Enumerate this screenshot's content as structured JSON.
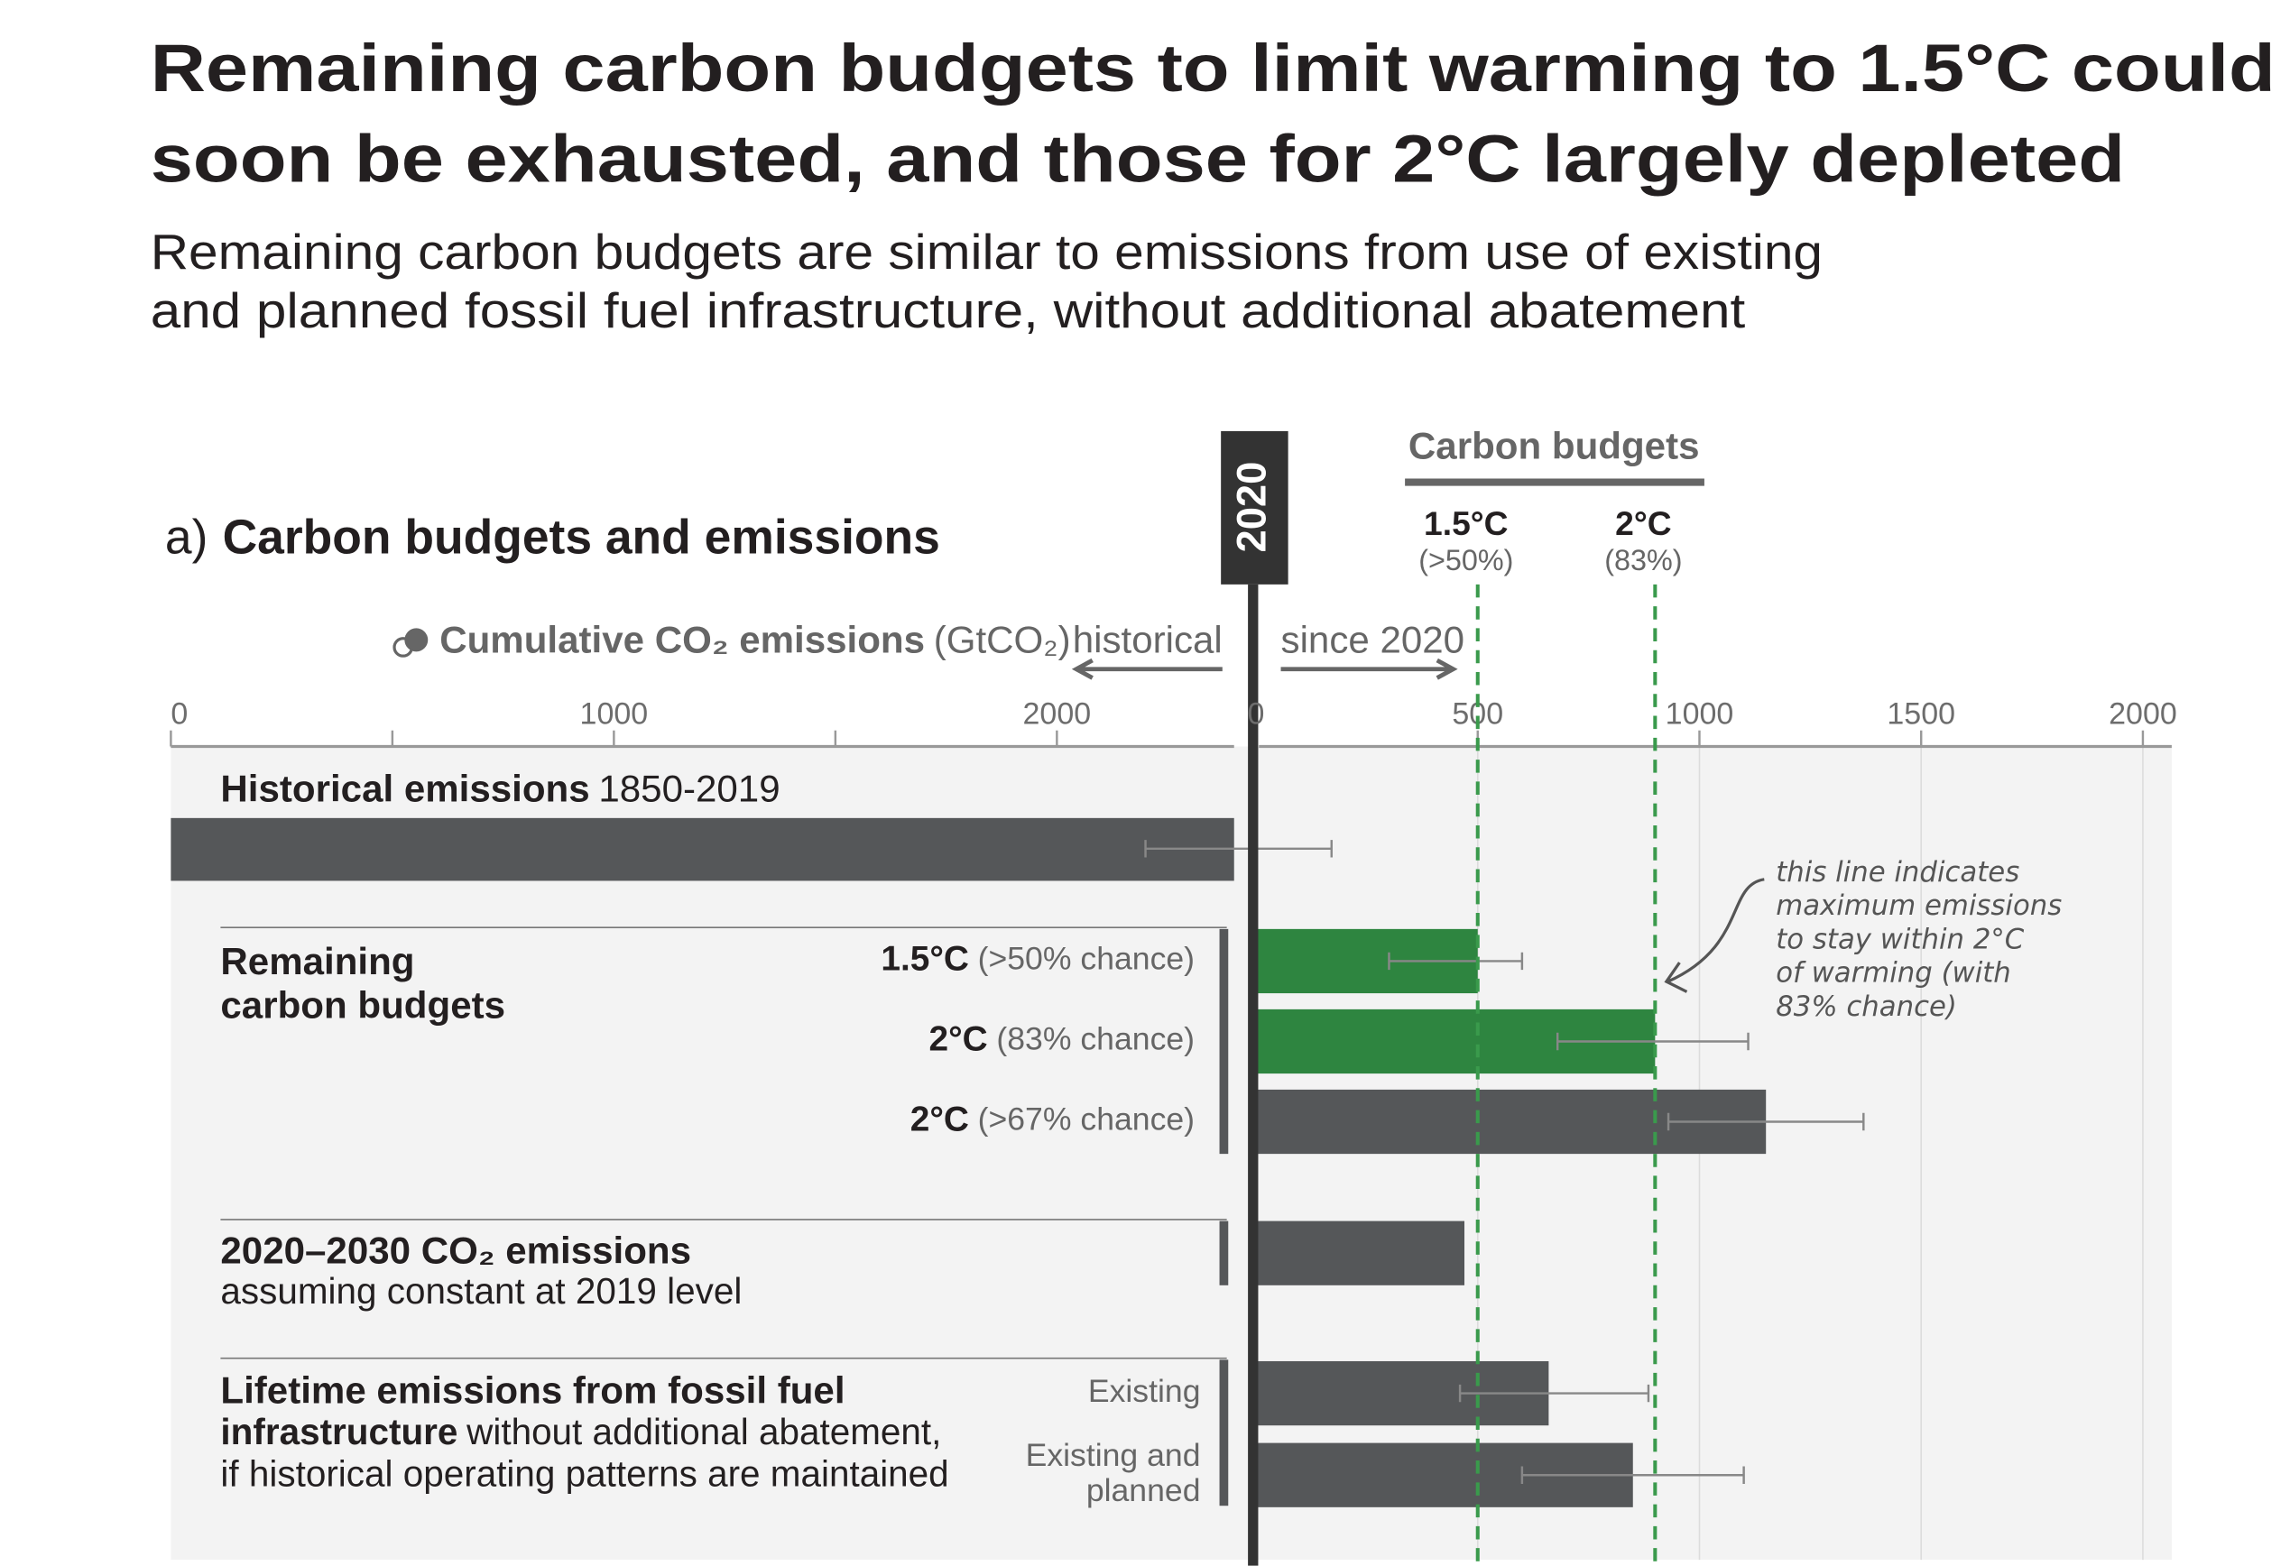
{
  "chart_data": {
    "type": "bar",
    "title_lines": [
      "Remaining carbon budgets to limit warming to 1.5°C could",
      "soon be exhausted, and those for 2°C largely depleted"
    ],
    "subtitle_lines": [
      "Remaining carbon budgets are similar to emissions from use of existing",
      "and planned fossil fuel infrastructure, without additional abatement"
    ],
    "panel_label": "a)",
    "panel_title": "Carbon budgets and emissions",
    "year_label": "2020",
    "budgets_heading": "Carbon budgets",
    "budget_lines": [
      {
        "label": "1.5°C",
        "sublabel": "(>50%)",
        "value": 500,
        "color": "#3a9a4c"
      },
      {
        "label": "2°C",
        "sublabel": "(83%)",
        "value": 900,
        "color": "#3a9a4c"
      }
    ],
    "axis_label": "Cumulative CO₂ emissions",
    "axis_unit": "(GtCO₂)",
    "historical_label": "historical",
    "since_label": "since 2020",
    "historical": {
      "xlim": [
        0,
        2400
      ],
      "xticks": [
        0,
        1000,
        2000
      ],
      "minor_ticks": [
        500,
        1500
      ],
      "label": "Historical emissions",
      "period": "1850-2019",
      "value": 2400,
      "error_low": 2200,
      "error_high": 2620,
      "color": "#555759"
    },
    "since_2020": {
      "xlim": [
        0,
        2065
      ],
      "xticks": [
        0,
        500,
        1000,
        1500,
        2000
      ],
      "grid": true,
      "groups": [
        {
          "title_lines": [
            "Remaining",
            "carbon budgets"
          ],
          "bars": [
            {
              "label": "1.5°C",
              "note": "(>50% chance)",
              "value": 500,
              "error_low": 300,
              "error_high": 600,
              "color": "#2e8540"
            },
            {
              "label": "2°C",
              "note": "(83% chance)",
              "value": 900,
              "error_low": 680,
              "error_high": 1110,
              "color": "#2e8540"
            },
            {
              "label": "2°C",
              "note": "(>67% chance)",
              "value": 1150,
              "error_low": 930,
              "error_high": 1370,
              "color": "#555759"
            }
          ]
        },
        {
          "title": "2020–2030 CO₂ emissions",
          "subtitle": "assuming constant at 2019 level",
          "bars": [
            {
              "value": 470,
              "color": "#555759"
            }
          ]
        },
        {
          "title_bold_1": "Lifetime emissions from fossil fuel",
          "title_bold_2": "infrastructure",
          "title_rest": "without additional abatement,",
          "title_line_3": "if historical operating patterns are maintained",
          "bars": [
            {
              "label_lines": [
                "Existing"
              ],
              "value": 660,
              "error_low": 460,
              "error_high": 885,
              "color": "#555759"
            },
            {
              "label_lines": [
                "Existing and",
                "planned"
              ],
              "value": 850,
              "error_low": 600,
              "error_high": 1100,
              "color": "#555759"
            }
          ]
        }
      ]
    },
    "annotation_lines": [
      "this line indicates",
      "maximum emissions",
      "to stay within 2°C",
      "of warming (with",
      "83% chance)"
    ]
  }
}
